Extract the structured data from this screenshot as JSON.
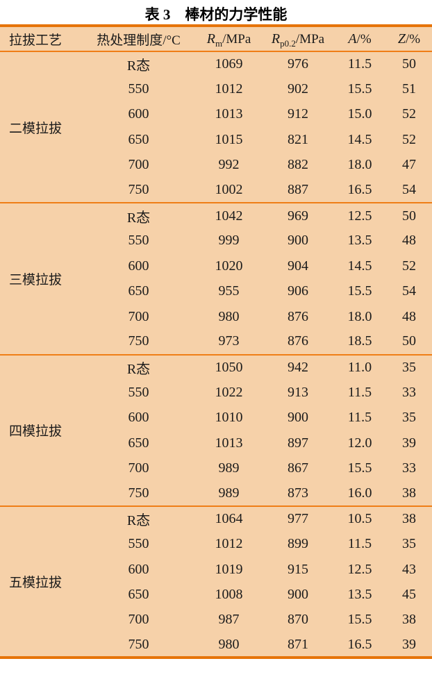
{
  "title": "表 3　棒材的力学性能",
  "colors": {
    "table_background": "#f6d1a9",
    "rule_thin": "#ef7e16",
    "rule_thick": "#e6740a",
    "text": "#1b1b1b"
  },
  "table": {
    "headers": {
      "process": "拉拔工艺",
      "heat": "热处理制度/°C",
      "rm": {
        "sym": "R",
        "sub": "m",
        "unit": "/MPa"
      },
      "rp": {
        "sym": "R",
        "sub": "p0.2",
        "unit": "/MPa"
      },
      "a": {
        "sym": "A",
        "unit": "/%"
      },
      "z": {
        "sym": "Z",
        "unit": "/%"
      }
    },
    "groups": [
      {
        "process": "二模拉拔",
        "rows": [
          {
            "heat": "R态",
            "rm": "1069",
            "rp": "976",
            "a": "11.5",
            "z": "50"
          },
          {
            "heat": "550",
            "rm": "1012",
            "rp": "902",
            "a": "15.5",
            "z": "51"
          },
          {
            "heat": "600",
            "rm": "1013",
            "rp": "912",
            "a": "15.0",
            "z": "52"
          },
          {
            "heat": "650",
            "rm": "1015",
            "rp": "821",
            "a": "14.5",
            "z": "52"
          },
          {
            "heat": "700",
            "rm": "992",
            "rp": "882",
            "a": "18.0",
            "z": "47"
          },
          {
            "heat": "750",
            "rm": "1002",
            "rp": "887",
            "a": "16.5",
            "z": "54"
          }
        ]
      },
      {
        "process": "三模拉拔",
        "rows": [
          {
            "heat": "R态",
            "rm": "1042",
            "rp": "969",
            "a": "12.5",
            "z": "50"
          },
          {
            "heat": "550",
            "rm": "999",
            "rp": "900",
            "a": "13.5",
            "z": "48"
          },
          {
            "heat": "600",
            "rm": "1020",
            "rp": "904",
            "a": "14.5",
            "z": "52"
          },
          {
            "heat": "650",
            "rm": "955",
            "rp": "906",
            "a": "15.5",
            "z": "54"
          },
          {
            "heat": "700",
            "rm": "980",
            "rp": "876",
            "a": "18.0",
            "z": "48"
          },
          {
            "heat": "750",
            "rm": "973",
            "rp": "876",
            "a": "18.5",
            "z": "50"
          }
        ]
      },
      {
        "process": "四模拉拔",
        "rows": [
          {
            "heat": "R态",
            "rm": "1050",
            "rp": "942",
            "a": "11.0",
            "z": "35"
          },
          {
            "heat": "550",
            "rm": "1022",
            "rp": "913",
            "a": "11.5",
            "z": "33"
          },
          {
            "heat": "600",
            "rm": "1010",
            "rp": "900",
            "a": "11.5",
            "z": "35"
          },
          {
            "heat": "650",
            "rm": "1013",
            "rp": "897",
            "a": "12.0",
            "z": "39"
          },
          {
            "heat": "700",
            "rm": "989",
            "rp": "867",
            "a": "15.5",
            "z": "33"
          },
          {
            "heat": "750",
            "rm": "989",
            "rp": "873",
            "a": "16.0",
            "z": "38"
          }
        ]
      },
      {
        "process": "五模拉拔",
        "rows": [
          {
            "heat": "R态",
            "rm": "1064",
            "rp": "977",
            "a": "10.5",
            "z": "38"
          },
          {
            "heat": "550",
            "rm": "1012",
            "rp": "899",
            "a": "11.5",
            "z": "35"
          },
          {
            "heat": "600",
            "rm": "1019",
            "rp": "915",
            "a": "12.5",
            "z": "43"
          },
          {
            "heat": "650",
            "rm": "1008",
            "rp": "900",
            "a": "13.5",
            "z": "45"
          },
          {
            "heat": "700",
            "rm": "987",
            "rp": "870",
            "a": "15.5",
            "z": "38"
          },
          {
            "heat": "750",
            "rm": "980",
            "rp": "871",
            "a": "16.5",
            "z": "39"
          }
        ]
      }
    ]
  }
}
